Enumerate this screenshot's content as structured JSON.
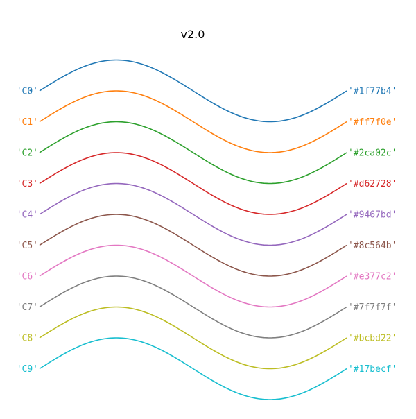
{
  "title": "v2.0",
  "chart_data": {
    "type": "line",
    "title": "v2.0",
    "xlabel": "",
    "ylabel": "",
    "x_range": [
      0,
      6.283
    ],
    "grid": false,
    "axes_visible": false,
    "legend": "none",
    "curve": "sine",
    "amplitude": 1,
    "series_spacing": 1,
    "series": [
      {
        "left_label": "'C0'",
        "right_label": "'#1f77b4'",
        "color": "#1f77b4",
        "offset": 0
      },
      {
        "left_label": "'C1'",
        "right_label": "'#ff7f0e'",
        "color": "#ff7f0e",
        "offset": -1
      },
      {
        "left_label": "'C2'",
        "right_label": "'#2ca02c'",
        "color": "#2ca02c",
        "offset": -2
      },
      {
        "left_label": "'C3'",
        "right_label": "'#d62728'",
        "color": "#d62728",
        "offset": -3
      },
      {
        "left_label": "'C4'",
        "right_label": "'#9467bd'",
        "color": "#9467bd",
        "offset": -4
      },
      {
        "left_label": "'C5'",
        "right_label": "'#8c564b'",
        "color": "#8c564b",
        "offset": -5
      },
      {
        "left_label": "'C6'",
        "right_label": "'#e377c2'",
        "color": "#e377c2",
        "offset": -6
      },
      {
        "left_label": "'C7'",
        "right_label": "'#7f7f7f'",
        "color": "#7f7f7f",
        "offset": -7
      },
      {
        "left_label": "'C8'",
        "right_label": "'#bcbd22'",
        "color": "#bcbd22",
        "offset": -8
      },
      {
        "left_label": "'C9'",
        "right_label": "'#17becf'",
        "color": "#17becf",
        "offset": -9
      }
    ]
  }
}
